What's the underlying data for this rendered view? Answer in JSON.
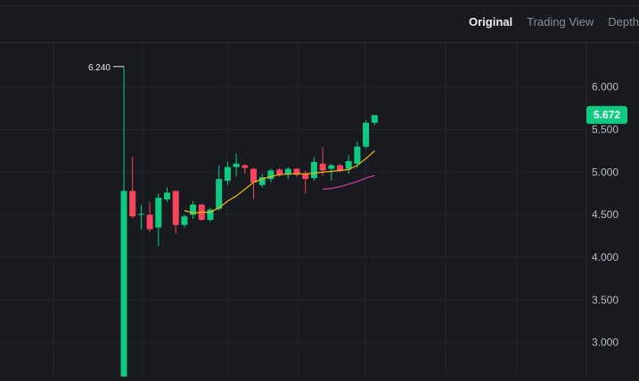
{
  "tabs": [
    {
      "label": "Original",
      "active": true
    },
    {
      "label": "Trading View",
      "active": false
    },
    {
      "label": "Depth",
      "active": false
    }
  ],
  "colors": {
    "background": "#181a20",
    "grid": "#22252c",
    "up": "#0ecb81",
    "down": "#f6465d",
    "ma_short": "#f0b90b",
    "ma_long": "#d43fa5",
    "axis_text": "#b7bdc6",
    "price_label_bg": "#0ecb81"
  },
  "chart_data": {
    "type": "candlestick",
    "y_ticks": [
      "6.000",
      "5.500",
      "5.000",
      "4.500",
      "4.000",
      "3.500",
      "3.000"
    ],
    "y_tick_values": [
      6.0,
      5.5,
      5.0,
      4.5,
      4.0,
      3.5,
      3.0
    ],
    "ylim": [
      2.6,
      6.52
    ],
    "grid": true,
    "high_marker": "6.240",
    "high_marker_value": 6.24,
    "last_price_label": "5.672",
    "last_price": 5.672,
    "candles": [
      {
        "o": 2.6,
        "h": 6.24,
        "l": 2.6,
        "c": 4.78
      },
      {
        "o": 4.78,
        "h": 5.18,
        "l": 4.46,
        "c": 4.48
      },
      {
        "o": 4.5,
        "h": 4.62,
        "l": 4.33,
        "c": 4.51
      },
      {
        "o": 4.5,
        "h": 4.65,
        "l": 4.3,
        "c": 4.33
      },
      {
        "o": 4.35,
        "h": 4.75,
        "l": 4.13,
        "c": 4.7
      },
      {
        "o": 4.68,
        "h": 4.82,
        "l": 4.65,
        "c": 4.76
      },
      {
        "o": 4.78,
        "h": 4.78,
        "l": 4.28,
        "c": 4.38
      },
      {
        "o": 4.38,
        "h": 4.5,
        "l": 4.35,
        "c": 4.48
      },
      {
        "o": 4.5,
        "h": 4.66,
        "l": 4.45,
        "c": 4.62
      },
      {
        "o": 4.62,
        "h": 4.63,
        "l": 4.43,
        "c": 4.44
      },
      {
        "o": 4.44,
        "h": 4.58,
        "l": 4.42,
        "c": 4.56
      },
      {
        "o": 4.57,
        "h": 5.08,
        "l": 4.55,
        "c": 4.92
      },
      {
        "o": 4.9,
        "h": 5.12,
        "l": 4.85,
        "c": 5.06
      },
      {
        "o": 5.06,
        "h": 5.22,
        "l": 4.95,
        "c": 5.1
      },
      {
        "o": 5.08,
        "h": 5.1,
        "l": 4.98,
        "c": 5.05
      },
      {
        "o": 5.04,
        "h": 5.05,
        "l": 4.68,
        "c": 4.88
      },
      {
        "o": 4.85,
        "h": 4.98,
        "l": 4.82,
        "c": 4.94
      },
      {
        "o": 4.92,
        "h": 5.04,
        "l": 4.88,
        "c": 5.02
      },
      {
        "o": 5.03,
        "h": 5.05,
        "l": 4.95,
        "c": 4.97
      },
      {
        "o": 4.97,
        "h": 5.06,
        "l": 4.92,
        "c": 5.04
      },
      {
        "o": 5.04,
        "h": 5.05,
        "l": 4.95,
        "c": 4.97
      },
      {
        "o": 4.98,
        "h": 5.02,
        "l": 4.75,
        "c": 4.92
      },
      {
        "o": 4.93,
        "h": 5.18,
        "l": 4.9,
        "c": 5.12
      },
      {
        "o": 5.1,
        "h": 5.29,
        "l": 4.96,
        "c": 5.02
      },
      {
        "o": 5.04,
        "h": 5.1,
        "l": 4.9,
        "c": 5.08
      },
      {
        "o": 5.08,
        "h": 5.1,
        "l": 5.0,
        "c": 5.02
      },
      {
        "o": 5.04,
        "h": 5.2,
        "l": 4.98,
        "c": 5.13
      },
      {
        "o": 5.1,
        "h": 5.36,
        "l": 5.05,
        "c": 5.3
      },
      {
        "o": 5.3,
        "h": 5.61,
        "l": 5.28,
        "c": 5.58
      },
      {
        "o": 5.58,
        "h": 5.67,
        "l": 5.55,
        "c": 5.67
      }
    ],
    "ma_short_values": [
      null,
      null,
      null,
      null,
      null,
      null,
      null,
      4.55,
      4.52,
      4.53,
      4.53,
      4.58,
      4.66,
      4.72,
      4.8,
      4.88,
      4.92,
      4.95,
      4.97,
      4.98,
      4.98,
      4.98,
      4.99,
      5.0,
      5.01,
      5.02,
      5.03,
      5.08,
      5.16,
      5.25
    ],
    "ma_long_values": [
      null,
      null,
      null,
      null,
      null,
      null,
      null,
      null,
      null,
      null,
      null,
      null,
      null,
      null,
      null,
      null,
      null,
      null,
      null,
      null,
      null,
      null,
      null,
      4.8,
      4.81,
      4.83,
      4.86,
      4.89,
      4.93,
      4.96
    ]
  }
}
